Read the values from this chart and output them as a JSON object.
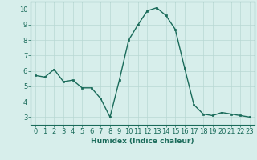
{
  "x": [
    0,
    1,
    2,
    3,
    4,
    5,
    6,
    7,
    8,
    9,
    10,
    11,
    12,
    13,
    14,
    15,
    16,
    17,
    18,
    19,
    20,
    21,
    22,
    23
  ],
  "y": [
    5.7,
    5.6,
    6.1,
    5.3,
    5.4,
    4.9,
    4.9,
    4.2,
    3.0,
    5.4,
    8.0,
    9.0,
    9.9,
    10.1,
    9.6,
    8.7,
    6.2,
    3.8,
    3.2,
    3.1,
    3.3,
    3.2,
    3.1,
    3.0
  ],
  "line_color": "#1a6b5a",
  "marker": "s",
  "marker_size": 2,
  "linewidth": 1.0,
  "bg_color": "#d7eeeb",
  "grid_color_major": "#b8d8d4",
  "grid_color_minor": "#cde6e3",
  "xlabel": "Humidex (Indice chaleur)",
  "xlim": [
    -0.5,
    23.5
  ],
  "ylim": [
    2.5,
    10.5
  ],
  "yticks": [
    3,
    4,
    5,
    6,
    7,
    8,
    9,
    10
  ],
  "xticks": [
    0,
    1,
    2,
    3,
    4,
    5,
    6,
    7,
    8,
    9,
    10,
    11,
    12,
    13,
    14,
    15,
    16,
    17,
    18,
    19,
    20,
    21,
    22,
    23
  ],
  "xlabel_fontsize": 6.5,
  "tick_fontsize": 6.0,
  "spine_color": "#1a6b5a"
}
